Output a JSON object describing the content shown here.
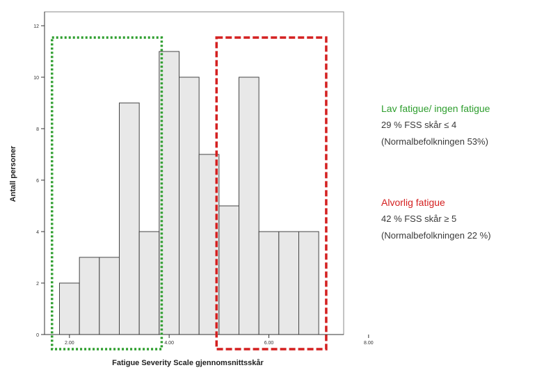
{
  "chart_data": {
    "type": "bar",
    "xlabel": "Fatigue Severity Scale gjennomsnittsskår",
    "ylabel": "Antall personer",
    "ylim": [
      0,
      12
    ],
    "yticks": [
      "0",
      "2",
      "4",
      "6",
      "8",
      "10",
      "12"
    ],
    "xlim": [
      1.5,
      7.5
    ],
    "xticks": [
      {
        "value": 2.0,
        "label": "2.00"
      },
      {
        "value": 4.0,
        "label": "4.00"
      },
      {
        "value": 6.0,
        "label": "6.00"
      },
      {
        "value": 8.0,
        "label": "8.00"
      }
    ],
    "bin_width": 0.4,
    "bins_start": [
      1.8,
      2.2,
      2.6,
      3.0,
      3.4,
      3.8,
      4.2,
      4.6,
      5.0,
      5.4,
      5.8,
      6.2,
      6.6
    ],
    "values": [
      2,
      3,
      3,
      9,
      4,
      11,
      10,
      7,
      5,
      10,
      4,
      4,
      4
    ],
    "grid": false,
    "bar_color": "#e8e8e8",
    "bar_edge_color": "#444444",
    "regions": [
      {
        "from": 1.65,
        "to": 3.85,
        "color": "#2e9e2e",
        "style": "dotted"
      },
      {
        "from": 4.95,
        "to": 7.15,
        "color": "#d42020",
        "style": "dashed"
      }
    ]
  },
  "annotations": {
    "low": {
      "title": "Lav fatigue/ ingen fatigue",
      "line1": "29 % FSS skår ≤ 4",
      "line2": "(Normalbefolkningen 53%)",
      "color": "#2e9e2e"
    },
    "severe": {
      "title": "Alvorlig fatigue",
      "line1": "42 % FSS skår ≥ 5",
      "line2": "(Normalbefolkningen 22 %)",
      "color": "#d42020"
    }
  }
}
